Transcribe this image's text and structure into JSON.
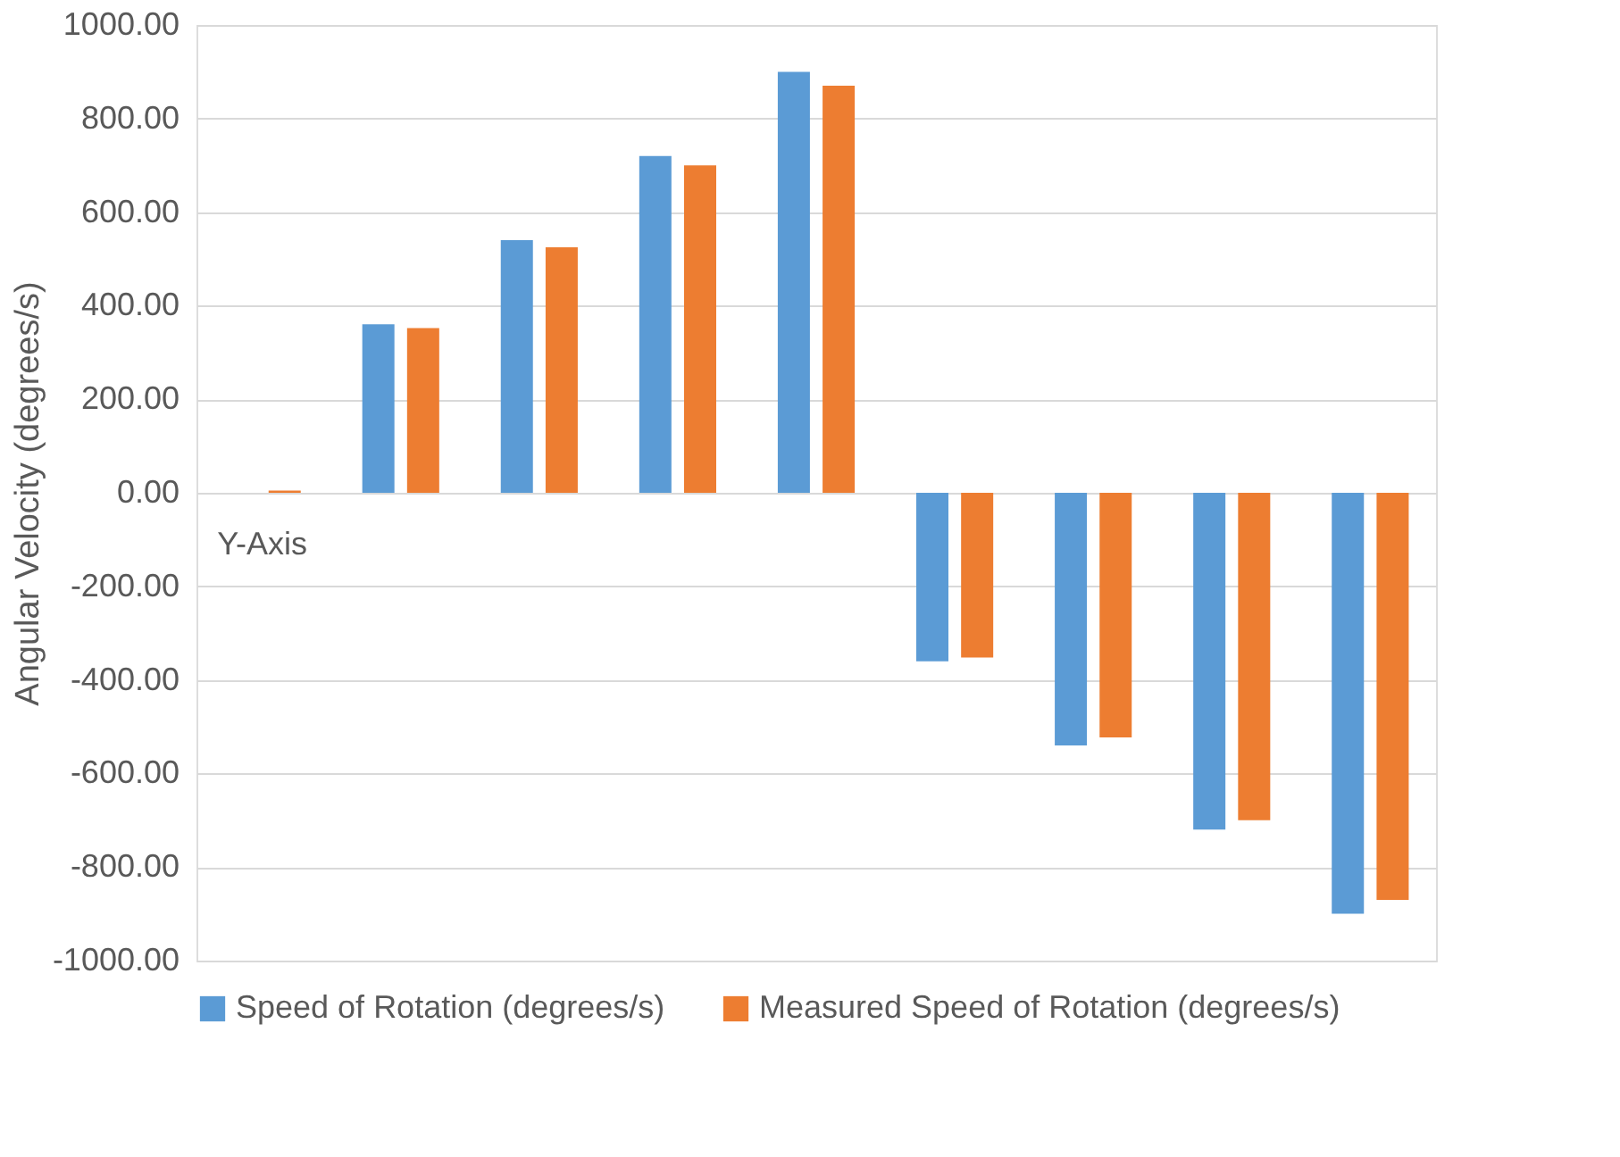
{
  "chart_data": {
    "type": "bar",
    "ylabel": "Angular Velocity (degrees/s)",
    "categories": [
      "Y-Axis",
      null,
      null,
      null,
      null,
      null,
      null,
      null,
      null
    ],
    "series": [
      {
        "name": "Speed of Rotation (degrees/s)",
        "color": "#5b9bd5",
        "values": [
          0,
          360,
          540,
          720,
          900,
          -360,
          -540,
          -720,
          -900
        ]
      },
      {
        "name": "Measured Speed of Rotation (degrees/s)",
        "color": "#ed7d31",
        "values": [
          5,
          352,
          525,
          700,
          870,
          -352,
          -523,
          -700,
          -870
        ]
      }
    ],
    "ylim": [
      -1000,
      1000
    ],
    "yticks": [
      {
        "value": -1000,
        "label": "-1000.00"
      },
      {
        "value": -800,
        "label": "-800.00"
      },
      {
        "value": -600,
        "label": "-600.00"
      },
      {
        "value": -400,
        "label": "-400.00"
      },
      {
        "value": -200,
        "label": "-200.00"
      },
      {
        "value": 0,
        "label": "0.00"
      },
      {
        "value": 200,
        "label": "200.00"
      },
      {
        "value": 400,
        "label": "400.00"
      },
      {
        "value": 600,
        "label": "600.00"
      },
      {
        "value": 800,
        "label": "800.00"
      },
      {
        "value": 1000,
        "label": "1000.00"
      }
    ],
    "grid": "y",
    "legend": "bottom"
  }
}
